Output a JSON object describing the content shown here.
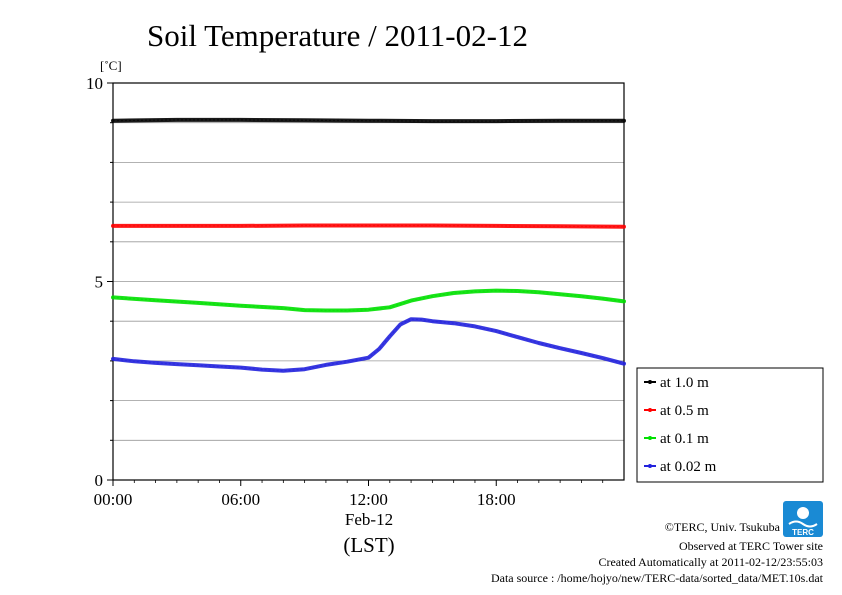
{
  "chart_data": {
    "type": "line",
    "title": "Soil Temperature / 2011-02-12",
    "y_unit": "[˚C]",
    "ylim": [
      0,
      10
    ],
    "yticks": [
      0,
      5,
      10
    ],
    "y_gridlines": [
      1,
      2,
      3,
      4,
      5,
      6,
      7,
      8,
      9
    ],
    "xlim": [
      0,
      24
    ],
    "xticks": [
      {
        "value": 0,
        "label": "00:00"
      },
      {
        "value": 6,
        "label": "06:00"
      },
      {
        "value": 12,
        "label": "12:00"
      },
      {
        "value": 18,
        "label": "18:00"
      }
    ],
    "date_label": "Feb-12",
    "xlabel": "(LST)",
    "grid": true,
    "legend_position": "right",
    "series": [
      {
        "name": "at 1.0 m",
        "color": "#000000",
        "x": [
          0,
          3,
          6,
          9,
          12,
          15,
          18,
          21,
          24
        ],
        "y": [
          9.05,
          9.07,
          9.07,
          9.06,
          9.05,
          9.04,
          9.04,
          9.05,
          9.05
        ]
      },
      {
        "name": "at 0.5 m",
        "color": "#ff0000",
        "x": [
          0,
          3,
          6,
          9,
          12,
          15,
          18,
          21,
          24
        ],
        "y": [
          6.4,
          6.4,
          6.4,
          6.41,
          6.41,
          6.41,
          6.4,
          6.39,
          6.38
        ]
      },
      {
        "name": "at 0.1 m",
        "color": "#00e000",
        "x": [
          0,
          2,
          4,
          6,
          8,
          9,
          10,
          11,
          12,
          13,
          14,
          15,
          16,
          17,
          18,
          19,
          20,
          21,
          22,
          23,
          24
        ],
        "y": [
          4.6,
          4.53,
          4.46,
          4.39,
          4.33,
          4.28,
          4.27,
          4.27,
          4.29,
          4.35,
          4.52,
          4.63,
          4.71,
          4.75,
          4.77,
          4.76,
          4.73,
          4.68,
          4.63,
          4.57,
          4.5
        ]
      },
      {
        "name": "at 0.02 m",
        "color": "#2222dd",
        "x": [
          0,
          1,
          2,
          3,
          4,
          5,
          6,
          7,
          8,
          9,
          10,
          11,
          12,
          12.5,
          13,
          13.5,
          14,
          14.5,
          15,
          16,
          17,
          18,
          19,
          20,
          21,
          22,
          23,
          24
        ],
        "y": [
          3.05,
          2.99,
          2.95,
          2.92,
          2.89,
          2.86,
          2.83,
          2.78,
          2.75,
          2.79,
          2.9,
          2.98,
          3.08,
          3.3,
          3.62,
          3.92,
          4.05,
          4.04,
          4.0,
          3.95,
          3.87,
          3.75,
          3.6,
          3.45,
          3.32,
          3.2,
          3.07,
          2.93
        ]
      }
    ]
  },
  "credits": {
    "copyright": "©TERC, Univ. Tsukuba",
    "observed": "Observed at TERC Tower site",
    "created": "Created Automatically at 2011-02-12/23:55:03",
    "source": "Data source : /home/hojyo/new/TERC-data/sorted_data/MET.10s.dat",
    "logo_text": "TERC",
    "logo_color": "#1a8ad4"
  }
}
